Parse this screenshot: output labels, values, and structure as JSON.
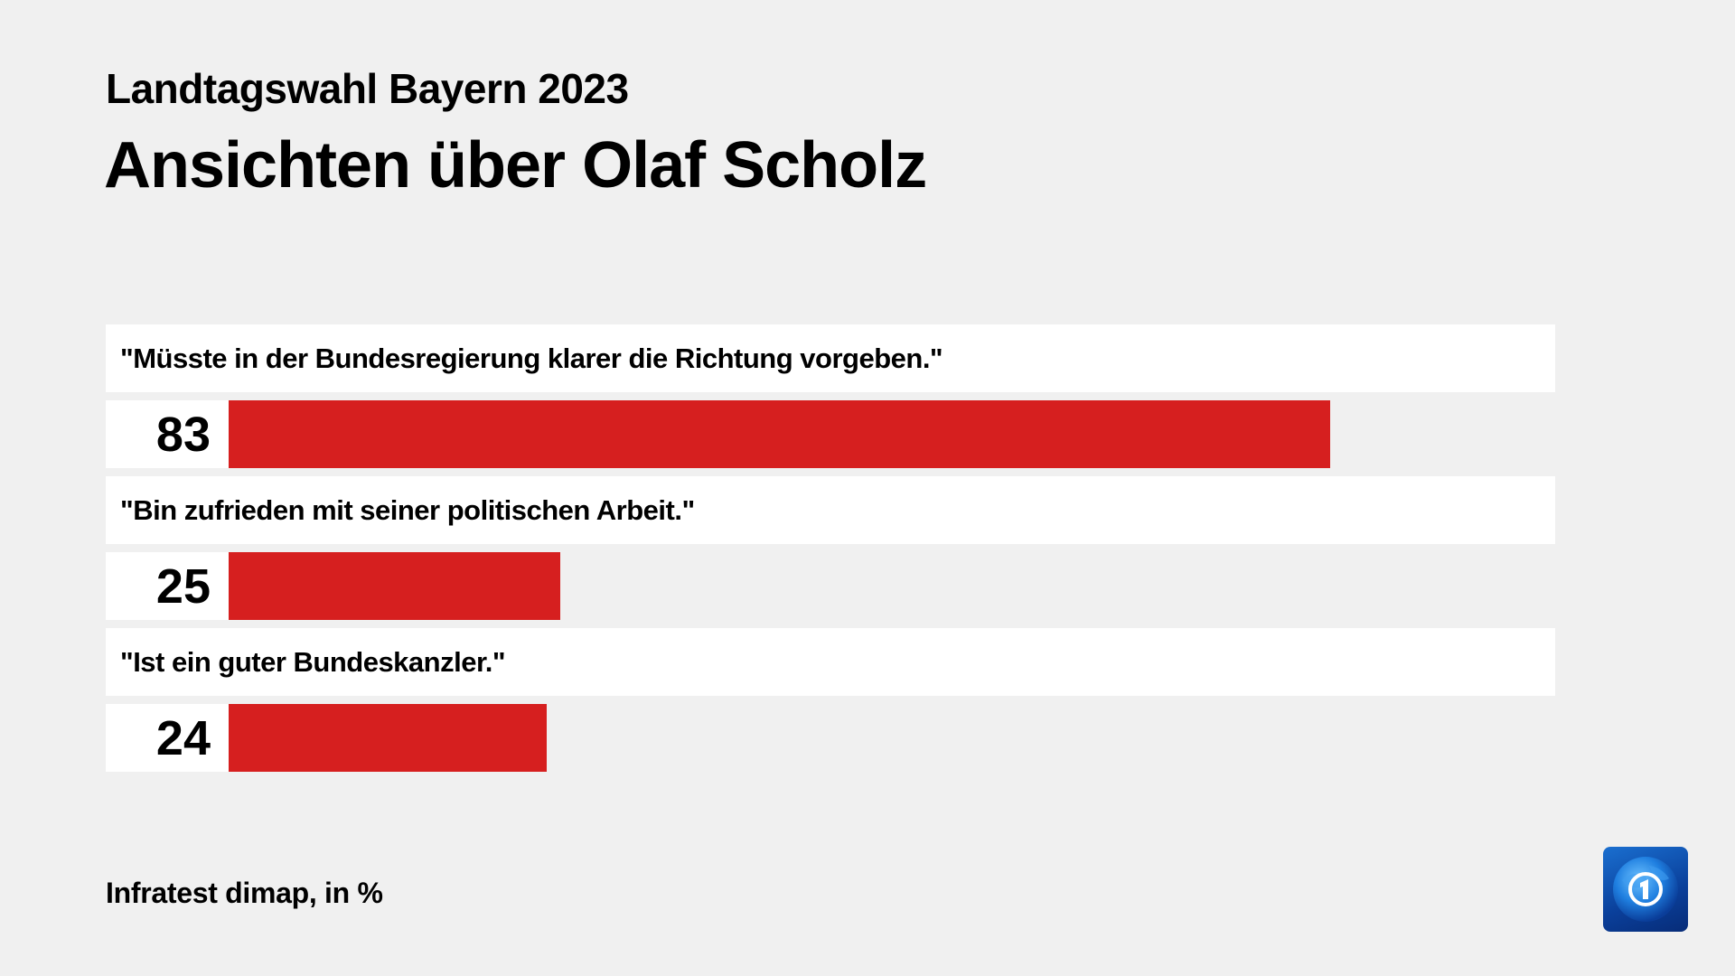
{
  "header": {
    "subtitle": "Landtagswahl Bayern 2023",
    "title": "Ansichten über Olaf Scholz"
  },
  "footer": {
    "source": "Infratest dimap, in %"
  },
  "logo": {
    "icon": "tagesschau-globe-1-logo-icon"
  },
  "colors": {
    "bar": "#d61f1f",
    "background": "#f0f0f0",
    "label_bg": "#ffffff"
  },
  "items": [
    {
      "label": "\"Müsste in der Bundesregierung klarer die Richtung vorgeben.\"",
      "value": "83"
    },
    {
      "label": "\"Bin zufrieden mit seiner politischen Arbeit.\"",
      "value": "25"
    },
    {
      "label": "\"Ist ein guter Bundeskanzler.\"",
      "value": "24"
    }
  ],
  "chart_data": {
    "type": "bar",
    "orientation": "horizontal",
    "title": "Ansichten über Olaf Scholz",
    "subtitle": "Landtagswahl Bayern 2023",
    "categories": [
      "\"Müsste in der Bundesregierung klarer die Richtung vorgeben.\"",
      "\"Bin zufrieden mit seiner politischen Arbeit.\"",
      "\"Ist ein guter Bundeskanzler.\""
    ],
    "values": [
      83,
      25,
      24
    ],
    "unit": "%",
    "source": "Infratest dimap, in %",
    "xlabel": "",
    "ylabel": "",
    "xlim": [
      0,
      100
    ],
    "grid": false,
    "legend": "none",
    "data_labels": true
  }
}
